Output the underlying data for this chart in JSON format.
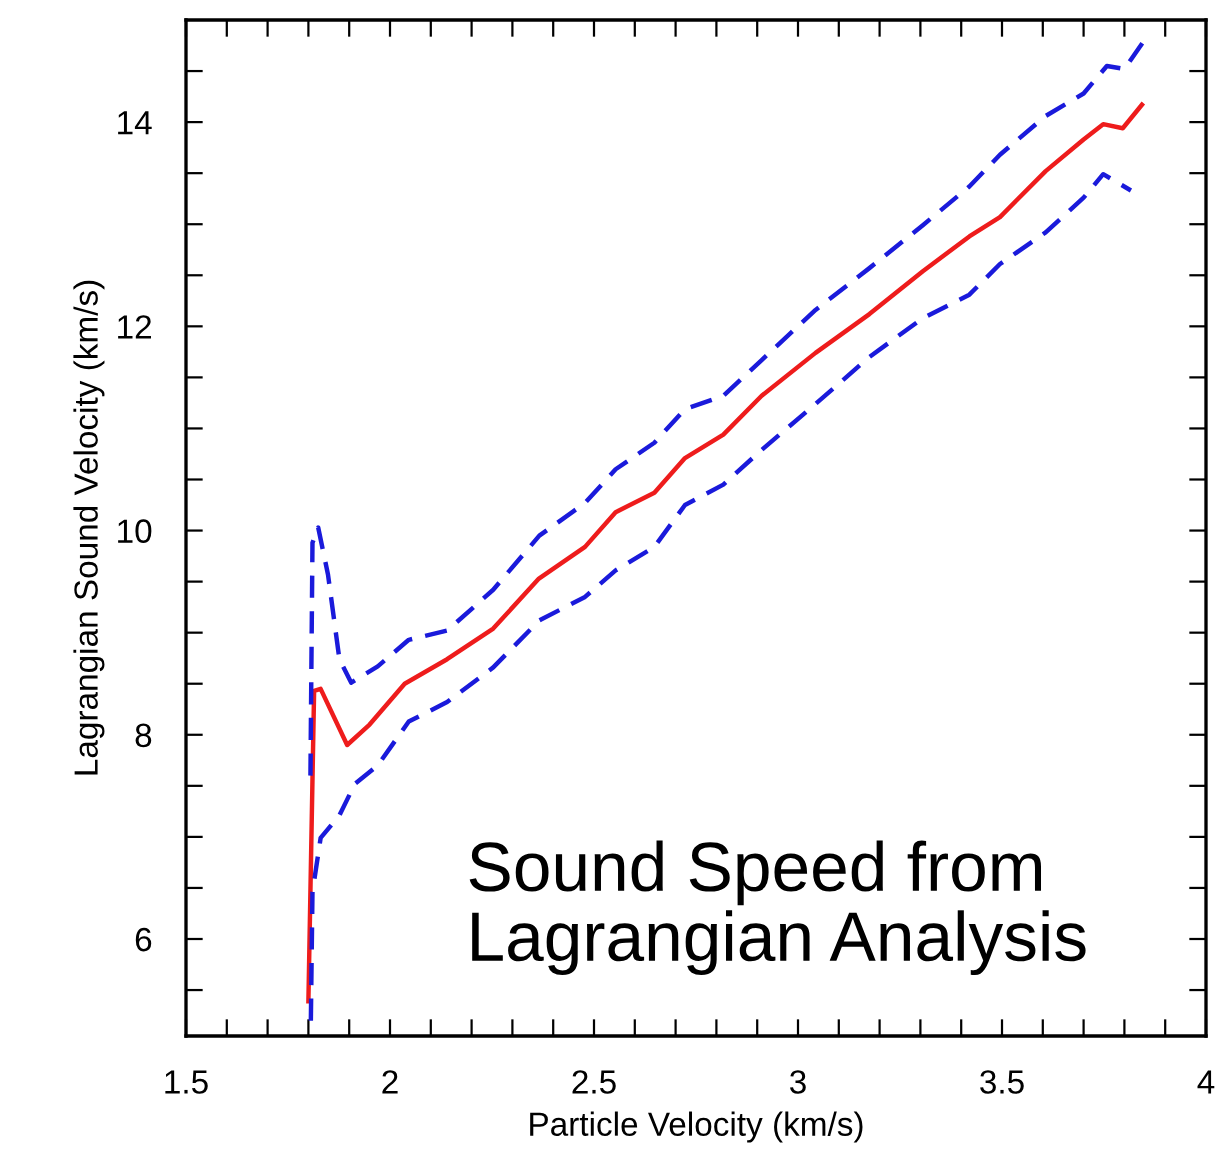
{
  "chart_data": {
    "type": "line",
    "xlabel": "Particle Velocity (km/s)",
    "ylabel": "Lagrangian Sound Velocity (km/s)",
    "annotations": [
      "Sound Speed from\nLagrangian Analysis"
    ],
    "xlim": [
      1.5,
      4
    ],
    "ylim": [
      5.05,
      15
    ],
    "xticks": [
      1.5,
      {
        "value": 1.6,
        "label": null
      },
      {
        "value": 1.7,
        "label": null
      },
      {
        "value": 1.8,
        "label": null
      },
      {
        "value": 1.9,
        "label": null
      },
      2,
      {
        "value": 2.1,
        "label": null
      },
      {
        "value": 2.2,
        "label": null
      },
      {
        "value": 2.3,
        "label": null
      },
      {
        "value": 2.4,
        "label": null
      },
      2.5,
      {
        "value": 2.6,
        "label": null
      },
      {
        "value": 2.7,
        "label": null
      },
      {
        "value": 2.8,
        "label": null
      },
      {
        "value": 2.9,
        "label": null
      },
      3,
      {
        "value": 3.1,
        "label": null
      },
      {
        "value": 3.2,
        "label": null
      },
      {
        "value": 3.3,
        "label": null
      },
      {
        "value": 3.4,
        "label": null
      },
      3.5,
      {
        "value": 3.6,
        "label": null
      },
      {
        "value": 3.7,
        "label": null
      },
      {
        "value": 3.8,
        "label": null
      },
      {
        "value": 3.9,
        "label": null
      },
      4
    ],
    "yticks": [
      {
        "value": 5.5,
        "label": null
      },
      6,
      {
        "value": 6.5,
        "label": null
      },
      {
        "value": 7,
        "label": null
      },
      {
        "value": 7.5,
        "label": null
      },
      8,
      {
        "value": 8.5,
        "label": null
      },
      {
        "value": 9,
        "label": null
      },
      {
        "value": 9.5,
        "label": null
      },
      10,
      {
        "value": 10.5,
        "label": null
      },
      {
        "value": 11,
        "label": null
      },
      {
        "value": 11.5,
        "label": null
      },
      12,
      {
        "value": 12.5,
        "label": null
      },
      {
        "value": 13,
        "label": null
      },
      {
        "value": 13.5,
        "label": null
      },
      14,
      {
        "value": 14.5,
        "label": null
      }
    ],
    "grid": false,
    "legend": false,
    "series": [
      {
        "color": "#ee1c1c",
        "line_style": "solid",
        "x": [
          1.8,
          1.814,
          1.83,
          1.895,
          1.95,
          2.036,
          2.14,
          2.253,
          2.365,
          2.478,
          2.553,
          2.648,
          2.723,
          2.817,
          2.911,
          3.043,
          3.175,
          3.306,
          3.42,
          3.495,
          3.607,
          3.7,
          3.748,
          3.796,
          3.843
        ],
        "values": [
          5.39,
          8.43,
          8.45,
          7.9,
          8.1,
          8.5,
          8.74,
          9.04,
          9.53,
          9.84,
          10.18,
          10.37,
          10.71,
          10.94,
          11.32,
          11.74,
          12.12,
          12.54,
          12.88,
          13.07,
          13.52,
          13.83,
          13.98,
          13.94,
          14.17
        ]
      },
      {
        "color": "#1a1adb",
        "line_style": "dashed",
        "x": [
          1.805,
          1.81,
          1.824,
          1.848,
          1.876,
          1.905,
          1.97,
          2.046,
          2.14,
          2.253,
          2.366,
          2.478,
          2.553,
          2.648,
          2.723,
          2.817,
          2.911,
          3.043,
          3.175,
          3.306,
          3.42,
          3.495,
          3.607,
          3.7,
          3.757,
          3.8,
          3.852
        ],
        "values": [
          7.6,
          9.88,
          10.03,
          9.57,
          8.74,
          8.51,
          8.67,
          8.93,
          9.02,
          9.42,
          9.95,
          10.27,
          10.6,
          10.86,
          11.19,
          11.32,
          11.67,
          12.16,
          12.57,
          12.99,
          13.37,
          13.68,
          14.06,
          14.28,
          14.55,
          14.52,
          14.82
        ]
      },
      {
        "color": "#1a1adb",
        "line_style": "dashed",
        "x": [
          1.806,
          1.81,
          1.83,
          1.876,
          1.914,
          1.97,
          2.046,
          2.14,
          2.253,
          2.366,
          2.478,
          2.553,
          2.648,
          2.723,
          2.817,
          2.911,
          3.043,
          3.175,
          3.306,
          3.42,
          3.495,
          3.607,
          3.7,
          3.748,
          3.816
        ],
        "values": [
          5.2,
          6.46,
          6.99,
          7.21,
          7.52,
          7.7,
          8.13,
          8.32,
          8.66,
          9.12,
          9.35,
          9.61,
          9.84,
          10.25,
          10.45,
          10.79,
          11.24,
          11.7,
          12.08,
          12.31,
          12.61,
          12.92,
          13.26,
          13.49,
          13.33
        ]
      }
    ]
  }
}
